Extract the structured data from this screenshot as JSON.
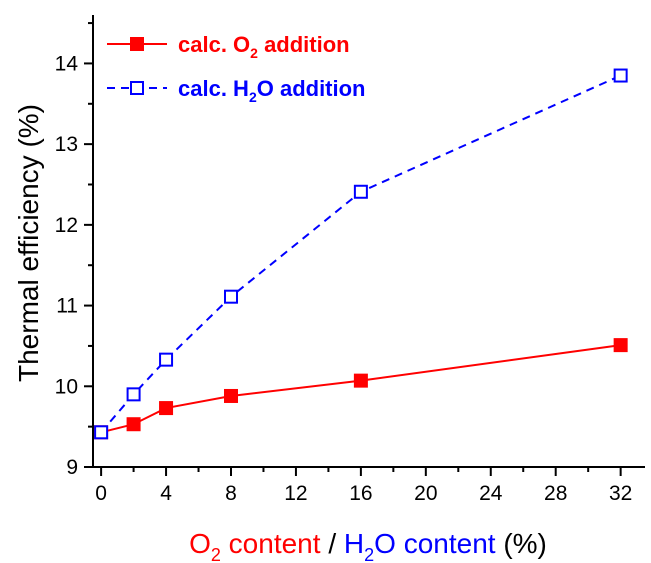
{
  "chart_data": {
    "type": "line",
    "x_ticks": [
      "0",
      "4",
      "8",
      "12",
      "16",
      "20",
      "24",
      "28",
      "32"
    ],
    "y_ticks": [
      "9",
      "10",
      "11",
      "12",
      "13",
      "14"
    ],
    "xlim": [
      -0.5,
      33.5
    ],
    "ylim": [
      9,
      14.6
    ],
    "grid": false,
    "legend_position": "top-left",
    "xlabel": {
      "parts": [
        {
          "text": "O",
          "color": "red"
        },
        {
          "text": "2",
          "color": "red",
          "sub": true
        },
        {
          "text": " content",
          "color": "red"
        },
        {
          "text": " / ",
          "color": "black"
        },
        {
          "text": "H",
          "color": "blue"
        },
        {
          "text": "2",
          "color": "blue",
          "sub": true
        },
        {
          "text": "O content",
          "color": "blue"
        },
        {
          "text": " (%)",
          "color": "black"
        }
      ]
    },
    "ylabel": "Thermal efficiency (%)",
    "series": [
      {
        "name_parts": [
          {
            "text": "calc. O"
          },
          {
            "text": "2",
            "sub": true
          },
          {
            "text": " addition"
          }
        ],
        "color": "#ff0000",
        "line_style": "solid",
        "marker": "filled-square",
        "x": [
          0,
          2,
          4,
          8,
          16,
          32
        ],
        "y": [
          9.43,
          9.53,
          9.73,
          9.88,
          10.07,
          10.51
        ]
      },
      {
        "name_parts": [
          {
            "text": "calc. H"
          },
          {
            "text": "2",
            "sub": true
          },
          {
            "text": "O addition"
          }
        ],
        "color": "#0000ff",
        "line_style": "dashed",
        "marker": "open-square",
        "x": [
          0,
          2,
          4,
          8,
          16,
          32
        ],
        "y": [
          9.43,
          9.9,
          10.33,
          11.11,
          12.41,
          13.85
        ]
      }
    ]
  }
}
